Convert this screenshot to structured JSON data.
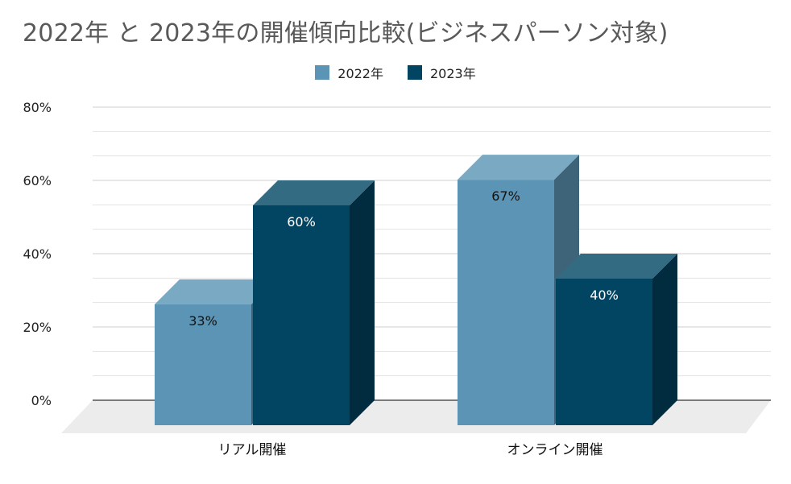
{
  "title": "2022年 と 2023年の開催傾向比較(ビジネスパーソン対象)",
  "legend": [
    {
      "label": "2022年",
      "color": "#5b94b4"
    },
    {
      "label": "2023年",
      "color": "#024563"
    }
  ],
  "chart_data": {
    "type": "bar",
    "title": "2022年 と 2023年の開催傾向比較(ビジネスパーソン対象)",
    "categories": [
      "リアル開催",
      "オンライン開催"
    ],
    "series": [
      {
        "name": "2022年",
        "values": [
          33,
          67
        ],
        "labels": [
          "33%",
          "67%"
        ]
      },
      {
        "name": "2023年",
        "values": [
          60,
          40
        ],
        "labels": [
          "60%",
          "40%"
        ]
      }
    ],
    "yticks": [
      "0%",
      "20%",
      "40%",
      "60%",
      "80%"
    ],
    "ylim": [
      0,
      80
    ],
    "legend_position": "top",
    "grid": true,
    "style": "3d"
  }
}
